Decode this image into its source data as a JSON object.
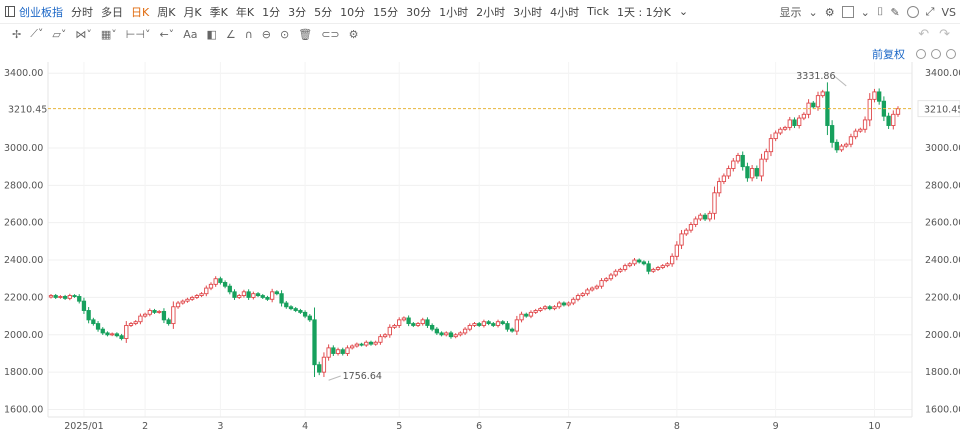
{
  "toolbar": {
    "symbol": "创业板指",
    "periods": [
      "分时",
      "多日",
      "日K",
      "周K",
      "月K",
      "季K",
      "年K",
      "1分",
      "3分",
      "5分",
      "10分",
      "15分",
      "30分",
      "1小时",
      "2小时",
      "3小时",
      "4小时",
      "Tick",
      "1天 : 1分K"
    ],
    "active_period": "日K",
    "display_label": "显示",
    "vs_label": "VS"
  },
  "drawing_tools": [
    {
      "icon": "crosshair-icon",
      "glyph": "✢"
    },
    {
      "icon": "trendline-icon",
      "glyph": "⟋˅"
    },
    {
      "icon": "channel-icon",
      "glyph": "▱˅"
    },
    {
      "icon": "wave-icon",
      "glyph": "⋈˅"
    },
    {
      "icon": "fib-icon",
      "glyph": "▦˅"
    },
    {
      "icon": "measure-icon",
      "glyph": "⊢⊣˅"
    },
    {
      "icon": "arrow-icon",
      "glyph": "←˅"
    },
    {
      "icon": "text-icon",
      "glyph": "Aa"
    },
    {
      "icon": "note-icon",
      "glyph": "◧"
    },
    {
      "icon": "angle-icon",
      "glyph": "∠"
    },
    {
      "icon": "magnet-icon",
      "glyph": "∩"
    },
    {
      "icon": "eye-icon",
      "glyph": "⊖"
    },
    {
      "icon": "lock-icon",
      "glyph": "⊙"
    },
    {
      "icon": "trash-icon",
      "glyph": "🗑"
    },
    {
      "icon": "link-icon",
      "glyph": "⊂⊃"
    },
    {
      "icon": "settings-icon",
      "glyph": "⚙"
    }
  ],
  "adjust_label": "前复权",
  "colors": {
    "up": "#e0484b",
    "down": "#17a05d",
    "current": "#e7b53c",
    "label_red": "#d2343a"
  },
  "chart_data": {
    "type": "candlestick",
    "y_ticks": [
      "3400.00",
      "3000.00",
      "2800.00",
      "2600.00",
      "2400.00",
      "2200.00",
      "2000.00",
      "1800.00",
      "1600.00"
    ],
    "ylim": [
      1560,
      3460
    ],
    "x_tick_labels": [
      {
        "label": "2025/01",
        "day": 7
      },
      {
        "label": "2",
        "day": 20
      },
      {
        "label": "3",
        "day": 36
      },
      {
        "label": "4",
        "day": 54
      },
      {
        "label": "5",
        "day": 74
      },
      {
        "label": "6",
        "day": 91
      },
      {
        "label": "7",
        "day": 110
      },
      {
        "label": "8",
        "day": 133
      },
      {
        "label": "9",
        "day": 154
      },
      {
        "label": "10",
        "day": 175
      }
    ],
    "current_price": 3210.45,
    "current_price_label": "3210.45",
    "high_annotation": {
      "label": "3331.86",
      "value": 3331.86,
      "day": 169
    },
    "low_annotation": {
      "label": "1756.64",
      "value": 1756.64,
      "day": 59
    },
    "closes": [
      2210,
      2200,
      2205,
      2195,
      2210,
      2205,
      2180,
      2130,
      2080,
      2060,
      2030,
      2010,
      2000,
      2005,
      1995,
      1980,
      2050,
      2060,
      2070,
      2100,
      2110,
      2130,
      2120,
      2125,
      2080,
      2060,
      2150,
      2170,
      2180,
      2190,
      2200,
      2210,
      2220,
      2250,
      2270,
      2300,
      2280,
      2260,
      2230,
      2200,
      2210,
      2230,
      2200,
      2220,
      2210,
      2200,
      2190,
      2230,
      2220,
      2170,
      2150,
      2140,
      2130,
      2120,
      2100,
      2080,
      1840,
      1800,
      1880,
      1930,
      1900,
      1920,
      1900,
      1930,
      1940,
      1950,
      1945,
      1960,
      1950,
      1960,
      1990,
      2000,
      2040,
      2050,
      2080,
      2090,
      2060,
      2050,
      2060,
      2080,
      2050,
      2030,
      2010,
      2000,
      2010,
      1990,
      2000,
      2010,
      2030,
      2050,
      2060,
      2050,
      2070,
      2060,
      2050,
      2070,
      2060,
      2030,
      2020,
      2080,
      2110,
      2100,
      2120,
      2130,
      2140,
      2150,
      2140,
      2150,
      2170,
      2160,
      2170,
      2190,
      2210,
      2220,
      2240,
      2250,
      2260,
      2290,
      2300,
      2320,
      2340,
      2350,
      2370,
      2380,
      2400,
      2390,
      2380,
      2340,
      2350,
      2360,
      2370,
      2380,
      2420,
      2480,
      2540,
      2560,
      2590,
      2620,
      2640,
      2620,
      2650,
      2760,
      2820,
      2850,
      2890,
      2930,
      2960,
      2900,
      2840,
      2890,
      2850,
      2940,
      2980,
      3050,
      3080,
      3100,
      3110,
      3150,
      3120,
      3160,
      3180,
      3240,
      3220,
      3280,
      3300,
      3120,
      3030,
      2990,
      3010,
      3020,
      3060,
      3090,
      3100,
      3150,
      3260,
      3300,
      3250,
      3170,
      3120,
      3180,
      3210
    ]
  }
}
